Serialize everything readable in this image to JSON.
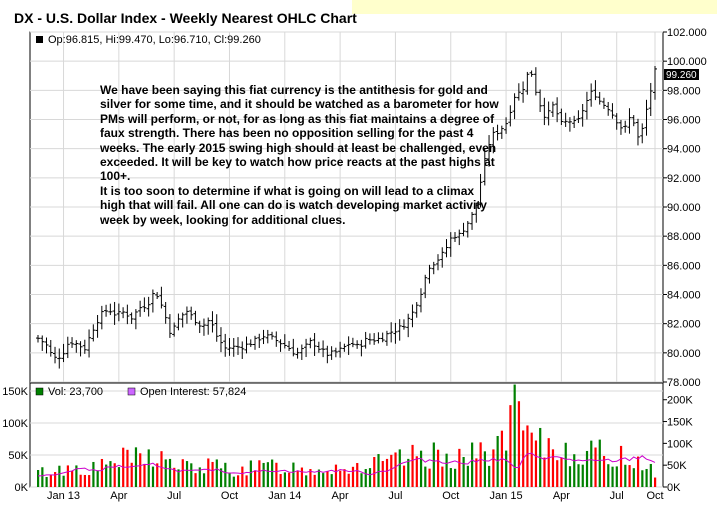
{
  "title": "DX - U.S. Dollar Index - Weekly Nearest OHLC Chart",
  "price_legend": "Op:96.815, Hi:99.470, Lo:96.710, Cl:99.260",
  "last_price_label": "99.260",
  "vol_legend": "Vol: 23,700",
  "oi_legend": "Open Interest: 57,824",
  "annotation": "We have been saying this fiat currency is the antithesis for gold and silver for some time, and it should be watched as a barometer for how PMs will perform, or not, for as long as this fiat maintains a degree of faux strength.  There has been no opposition selling for the past 4 weeks.  The early 2015 swing high should at least be challenged, even exceeded.  It will be key to watch how price reacts at the past highs at 100+.\nIt is too soon to determine if what is going on will lead to a climax high that will fail.  All one can do is watch developing market activity week by week, looking for additional clues.",
  "colors": {
    "bar": "#000000",
    "vol_up": "#008000",
    "vol_down": "#ff0000",
    "oi_line": "#cc00cc",
    "grid": "#d8d8d8",
    "last_label_bg": "#000000"
  },
  "chart_data": [
    {
      "type": "ohlc",
      "title": "DX - U.S. Dollar Index - Weekly Nearest OHLC Chart",
      "y_ticks": [
        "78.000",
        "80.000",
        "82.000",
        "84.000",
        "86.000",
        "88.000",
        "90.000",
        "92.000",
        "94.000",
        "96.000",
        "98.000",
        "100.000",
        "102.000"
      ],
      "x_ticks": [
        "Jan 13",
        "Apr",
        "Jul",
        "Oct",
        "Jan 14",
        "Apr",
        "Jul",
        "Oct",
        "Jan 15",
        "Apr",
        "Jul",
        "Oct"
      ],
      "ylim": [
        78,
        102
      ],
      "close_path": [
        [
          0,
          81.0
        ],
        [
          4,
          80.6
        ],
        [
          8,
          79.6
        ],
        [
          12,
          79.8
        ],
        [
          16,
          80.8
        ],
        [
          20,
          80.6
        ],
        [
          24,
          80.3
        ],
        [
          28,
          81.6
        ],
        [
          32,
          82.6
        ],
        [
          36,
          83.0
        ],
        [
          40,
          82.6
        ],
        [
          44,
          82.8
        ],
        [
          48,
          82.4
        ],
        [
          52,
          83.1
        ],
        [
          56,
          83.3
        ],
        [
          60,
          84.3
        ],
        [
          64,
          83.0
        ],
        [
          68,
          81.3
        ],
        [
          72,
          82.3
        ],
        [
          76,
          82.9
        ],
        [
          80,
          82.3
        ],
        [
          84,
          81.8
        ],
        [
          88,
          82.3
        ],
        [
          92,
          81.0
        ],
        [
          96,
          80.3
        ],
        [
          100,
          80.4
        ],
        [
          104,
          80.4
        ],
        [
          108,
          80.6
        ],
        [
          112,
          80.9
        ],
        [
          116,
          81.2
        ],
        [
          120,
          81.0
        ],
        [
          124,
          80.7
        ],
        [
          128,
          80.4
        ],
        [
          132,
          79.9
        ],
        [
          136,
          80.3
        ],
        [
          140,
          80.8
        ],
        [
          144,
          80.3
        ],
        [
          148,
          79.9
        ],
        [
          152,
          80.0
        ],
        [
          156,
          80.3
        ],
        [
          160,
          80.7
        ],
        [
          164,
          80.4
        ],
        [
          168,
          80.9
        ],
        [
          172,
          80.9
        ],
        [
          176,
          81.0
        ],
        [
          180,
          81.4
        ],
        [
          184,
          81.6
        ],
        [
          188,
          82.0
        ],
        [
          192,
          82.8
        ],
        [
          196,
          84.1
        ],
        [
          200,
          85.9
        ],
        [
          204,
          86.3
        ],
        [
          208,
          86.9
        ],
        [
          212,
          88.0
        ],
        [
          216,
          88.1
        ],
        [
          220,
          88.9
        ],
        [
          224,
          89.8
        ],
        [
          228,
          92.7
        ],
        [
          232,
          94.9
        ],
        [
          236,
          95.2
        ],
        [
          240,
          95.8
        ],
        [
          244,
          97.6
        ],
        [
          248,
          98.0
        ],
        [
          252,
          99.6
        ],
        [
          256,
          97.4
        ],
        [
          260,
          96.1
        ],
        [
          264,
          97.0
        ],
        [
          268,
          95.7
        ],
        [
          272,
          95.9
        ],
        [
          276,
          95.7
        ],
        [
          280,
          97.0
        ],
        [
          284,
          98.0
        ],
        [
          288,
          97.2
        ],
        [
          292,
          96.8
        ],
        [
          296,
          96.0
        ],
        [
          300,
          95.2
        ],
        [
          304,
          96.4
        ],
        [
          308,
          94.4
        ],
        [
          312,
          96.9
        ],
        [
          316,
          99.3
        ]
      ]
    },
    {
      "type": "bar",
      "title": "Volume / Open Interest",
      "y_ticks_left": [
        "0K",
        "50K",
        "100K",
        "150K"
      ],
      "y_ticks_right": [
        "0K",
        "50K",
        "100K",
        "150K",
        "200K"
      ],
      "ylim": [
        0,
        150000
      ],
      "vol_path": [
        [
          0,
          22000
        ],
        [
          10,
          26000
        ],
        [
          20,
          31000
        ],
        [
          30,
          28000
        ],
        [
          40,
          42000
        ],
        [
          50,
          45000
        ],
        [
          60,
          50000
        ],
        [
          70,
          34000
        ],
        [
          80,
          30000
        ],
        [
          90,
          33000
        ],
        [
          100,
          27000
        ],
        [
          110,
          29000
        ],
        [
          120,
          33000
        ],
        [
          130,
          31000
        ],
        [
          140,
          27000
        ],
        [
          150,
          32000
        ],
        [
          160,
          30000
        ],
        [
          170,
          35000
        ],
        [
          180,
          38000
        ],
        [
          190,
          45000
        ],
        [
          200,
          48000
        ],
        [
          210,
          50000
        ],
        [
          220,
          46000
        ],
        [
          230,
          55000
        ],
        [
          240,
          75000
        ],
        [
          246,
          130000
        ],
        [
          250,
          70000
        ],
        [
          260,
          62000
        ],
        [
          270,
          57000
        ],
        [
          280,
          55000
        ],
        [
          290,
          50000
        ],
        [
          300,
          47000
        ],
        [
          310,
          40000
        ],
        [
          316,
          23700
        ]
      ],
      "oi_path": [
        [
          0,
          25000
        ],
        [
          10,
          28000
        ],
        [
          20,
          42000
        ],
        [
          30,
          38000
        ],
        [
          40,
          48000
        ],
        [
          50,
          45000
        ],
        [
          60,
          52000
        ],
        [
          70,
          38000
        ],
        [
          80,
          36000
        ],
        [
          90,
          40000
        ],
        [
          100,
          32000
        ],
        [
          110,
          35000
        ],
        [
          120,
          38000
        ],
        [
          130,
          36000
        ],
        [
          140,
          34000
        ],
        [
          150,
          37000
        ],
        [
          160,
          38000
        ],
        [
          170,
          30000
        ],
        [
          180,
          40000
        ],
        [
          190,
          60000
        ],
        [
          200,
          62000
        ],
        [
          210,
          58000
        ],
        [
          220,
          55000
        ],
        [
          230,
          65000
        ],
        [
          240,
          60000
        ],
        [
          246,
          40000
        ],
        [
          250,
          75000
        ],
        [
          260,
          68000
        ],
        [
          270,
          65000
        ],
        [
          280,
          58000
        ],
        [
          290,
          60000
        ],
        [
          300,
          62000
        ],
        [
          310,
          70000
        ],
        [
          316,
          57824
        ]
      ]
    }
  ]
}
